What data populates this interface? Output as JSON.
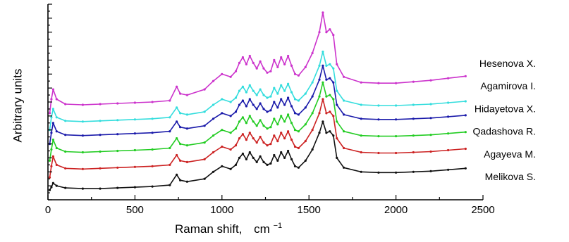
{
  "chart_data": {
    "type": "line",
    "xlabel": "Raman shift,",
    "xlabel_unit": "cm",
    "xlabel_exp": "−1",
    "ylabel": "Arbitrary units",
    "xlim": [
      0,
      2500
    ],
    "ylim": [
      0,
      14
    ],
    "x_ticks": [
      0,
      500,
      1000,
      1500,
      2000,
      2500
    ],
    "y_tick_labels": "none",
    "grid": false,
    "legend": "right, label near each trace",
    "series": [
      {
        "name": "Melikova S.",
        "color": "#111111",
        "x": [
          10,
          20,
          30,
          50,
          100,
          200,
          300,
          400,
          500,
          600,
          700,
          740,
          760,
          800,
          900,
          950,
          1000,
          1050,
          1080,
          1100,
          1120,
          1140,
          1160,
          1180,
          1200,
          1220,
          1240,
          1260,
          1280,
          1300,
          1320,
          1340,
          1360,
          1380,
          1400,
          1420,
          1440,
          1480,
          1520,
          1560,
          1580,
          1600,
          1620,
          1640,
          1660,
          1700,
          1800,
          1900,
          2000,
          2100,
          2200,
          2300,
          2400
        ],
        "y": [
          0.7,
          0.9,
          1.2,
          1.0,
          0.85,
          0.8,
          0.8,
          0.85,
          0.9,
          0.95,
          1.05,
          1.8,
          1.4,
          1.3,
          1.5,
          2.0,
          2.4,
          2.2,
          2.5,
          3.0,
          3.3,
          2.9,
          3.4,
          3.0,
          2.7,
          3.1,
          2.7,
          2.5,
          2.6,
          3.2,
          2.8,
          3.4,
          3.0,
          3.5,
          2.9,
          2.4,
          2.3,
          2.8,
          3.6,
          4.8,
          5.6,
          4.8,
          4.9,
          4.6,
          3.0,
          2.3,
          2.0,
          1.95,
          1.95,
          2.0,
          2.05,
          2.15,
          2.25
        ]
      },
      {
        "name": "Agayeva M.",
        "color": "#cc2222",
        "x": [
          10,
          20,
          30,
          50,
          100,
          200,
          300,
          400,
          500,
          600,
          700,
          740,
          760,
          800,
          900,
          950,
          1000,
          1050,
          1080,
          1100,
          1120,
          1140,
          1160,
          1180,
          1200,
          1220,
          1240,
          1260,
          1280,
          1300,
          1320,
          1340,
          1360,
          1380,
          1400,
          1420,
          1440,
          1480,
          1520,
          1560,
          1580,
          1600,
          1620,
          1640,
          1660,
          1700,
          1800,
          1900,
          2000,
          2100,
          2200,
          2300,
          2400
        ],
        "y": [
          1.6,
          2.4,
          3.1,
          2.5,
          2.25,
          2.2,
          2.25,
          2.3,
          2.35,
          2.4,
          2.5,
          3.2,
          2.8,
          2.7,
          2.9,
          3.4,
          3.8,
          3.6,
          3.9,
          4.4,
          4.7,
          4.3,
          4.8,
          4.4,
          4.1,
          4.5,
          4.1,
          3.9,
          4.0,
          4.6,
          4.2,
          4.8,
          4.4,
          4.9,
          4.3,
          3.8,
          3.7,
          4.2,
          5.0,
          6.2,
          7.2,
          6.2,
          6.3,
          6.0,
          4.4,
          3.7,
          3.4,
          3.35,
          3.35,
          3.4,
          3.45,
          3.55,
          3.65
        ]
      },
      {
        "name": "Qadashova R.",
        "color": "#22cc22",
        "x": [
          10,
          20,
          30,
          50,
          100,
          200,
          300,
          400,
          500,
          600,
          700,
          740,
          760,
          800,
          900,
          950,
          1000,
          1050,
          1080,
          1100,
          1120,
          1140,
          1160,
          1180,
          1200,
          1220,
          1240,
          1260,
          1280,
          1300,
          1320,
          1340,
          1360,
          1380,
          1400,
          1420,
          1440,
          1480,
          1520,
          1560,
          1580,
          1600,
          1620,
          1640,
          1660,
          1700,
          1800,
          1900,
          2000,
          2100,
          2200,
          2300,
          2400
        ],
        "y": [
          2.8,
          3.6,
          4.3,
          3.7,
          3.45,
          3.4,
          3.45,
          3.5,
          3.55,
          3.6,
          3.7,
          4.4,
          4.0,
          3.9,
          4.1,
          4.6,
          5.0,
          4.8,
          5.1,
          5.6,
          5.9,
          5.5,
          6.0,
          5.6,
          5.3,
          5.7,
          5.3,
          5.1,
          5.2,
          5.8,
          5.4,
          6.0,
          5.6,
          6.1,
          5.5,
          5.0,
          4.9,
          5.4,
          6.2,
          7.4,
          8.4,
          7.4,
          7.5,
          7.2,
          5.6,
          4.9,
          4.6,
          4.55,
          4.55,
          4.6,
          4.65,
          4.75,
          4.85
        ]
      },
      {
        "name": "Hidayetova X.",
        "color": "#1a1aaa",
        "x": [
          10,
          20,
          30,
          50,
          100,
          200,
          300,
          400,
          500,
          600,
          700,
          740,
          760,
          800,
          900,
          950,
          1000,
          1050,
          1080,
          1100,
          1120,
          1140,
          1160,
          1180,
          1200,
          1220,
          1240,
          1260,
          1280,
          1300,
          1320,
          1340,
          1360,
          1380,
          1400,
          1420,
          1440,
          1480,
          1520,
          1560,
          1580,
          1600,
          1620,
          1640,
          1660,
          1700,
          1800,
          1900,
          2000,
          2100,
          2200,
          2300,
          2400
        ],
        "y": [
          4.0,
          4.8,
          5.5,
          4.9,
          4.65,
          4.6,
          4.65,
          4.7,
          4.75,
          4.8,
          4.9,
          5.6,
          5.2,
          5.1,
          5.3,
          5.8,
          6.2,
          6.0,
          6.3,
          6.8,
          7.1,
          6.7,
          7.2,
          6.8,
          6.5,
          6.9,
          6.5,
          6.3,
          6.4,
          7.0,
          6.6,
          7.2,
          6.8,
          7.3,
          6.7,
          6.2,
          6.1,
          6.6,
          7.4,
          8.6,
          9.6,
          8.6,
          8.7,
          8.4,
          6.8,
          6.1,
          5.8,
          5.75,
          5.75,
          5.8,
          5.85,
          5.95,
          6.05
        ]
      },
      {
        "name": "Agamirova I.",
        "color": "#33dddd",
        "x": [
          10,
          20,
          30,
          50,
          100,
          200,
          300,
          400,
          500,
          600,
          700,
          740,
          760,
          800,
          900,
          950,
          1000,
          1050,
          1080,
          1100,
          1120,
          1140,
          1160,
          1180,
          1200,
          1220,
          1240,
          1260,
          1280,
          1300,
          1320,
          1340,
          1360,
          1380,
          1400,
          1420,
          1440,
          1480,
          1520,
          1560,
          1580,
          1600,
          1620,
          1640,
          1660,
          1700,
          1800,
          1900,
          2000,
          2100,
          2200,
          2300,
          2400
        ],
        "y": [
          5.0,
          5.9,
          6.5,
          5.9,
          5.65,
          5.6,
          5.65,
          5.7,
          5.75,
          5.8,
          5.9,
          6.6,
          6.2,
          6.1,
          6.3,
          6.8,
          7.2,
          7.0,
          7.3,
          7.8,
          8.1,
          7.7,
          8.2,
          7.8,
          7.5,
          7.9,
          7.5,
          7.3,
          7.4,
          8.0,
          7.6,
          8.2,
          7.8,
          8.3,
          7.7,
          7.2,
          7.1,
          7.6,
          8.4,
          9.6,
          10.6,
          9.6,
          9.7,
          9.4,
          7.8,
          7.1,
          6.8,
          6.75,
          6.75,
          6.8,
          6.85,
          6.95,
          7.05
        ]
      },
      {
        "name": "Hesenova X.",
        "color": "#cc33cc",
        "x": [
          10,
          20,
          30,
          50,
          100,
          200,
          300,
          400,
          500,
          600,
          700,
          740,
          760,
          800,
          900,
          950,
          1000,
          1050,
          1080,
          1100,
          1120,
          1140,
          1160,
          1180,
          1200,
          1220,
          1240,
          1260,
          1280,
          1300,
          1320,
          1340,
          1360,
          1380,
          1400,
          1420,
          1440,
          1480,
          1520,
          1560,
          1580,
          1600,
          1620,
          1640,
          1660,
          1700,
          1800,
          1900,
          2000,
          2100,
          2200,
          2300,
          2400
        ],
        "y": [
          6.2,
          7.2,
          7.9,
          7.2,
          6.85,
          6.8,
          6.85,
          6.9,
          6.95,
          7.0,
          7.1,
          8.1,
          7.6,
          7.5,
          7.9,
          8.5,
          9.0,
          8.8,
          9.2,
          9.8,
          10.2,
          9.7,
          10.3,
          9.8,
          9.4,
          9.9,
          9.4,
          9.1,
          9.2,
          10.0,
          9.5,
          10.2,
          9.7,
          10.3,
          9.6,
          9.0,
          8.9,
          9.5,
          10.5,
          12.0,
          13.4,
          12.0,
          12.2,
          11.8,
          9.7,
          8.8,
          8.4,
          8.35,
          8.35,
          8.45,
          8.55,
          8.7,
          8.85
        ]
      }
    ]
  }
}
